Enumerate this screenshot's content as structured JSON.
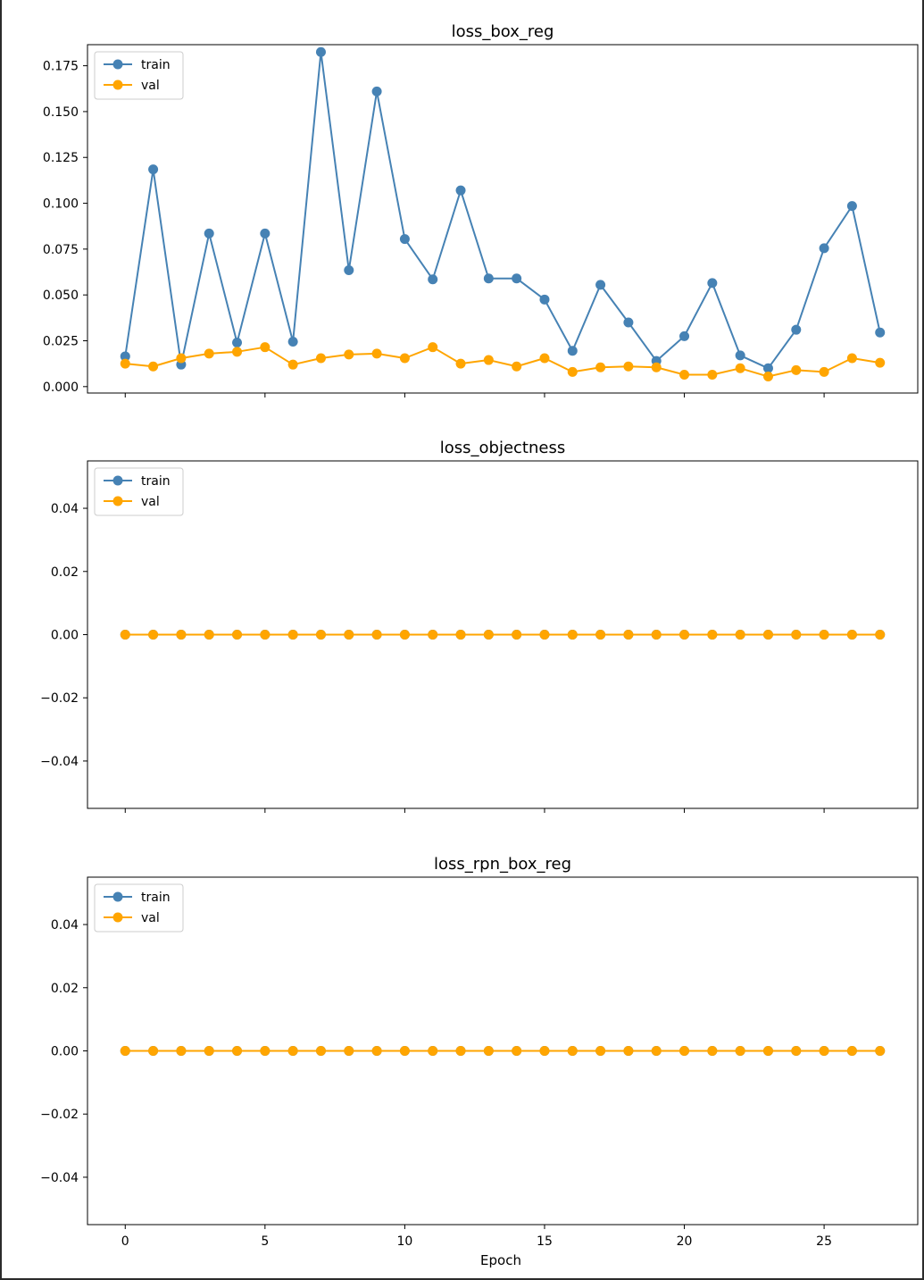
{
  "figure": {
    "xlabel": "Epoch"
  },
  "colors": {
    "train": "#4682b4",
    "val": "#ffa500",
    "axis": "#000000"
  },
  "chart_data": [
    {
      "type": "line",
      "title": "loss_box_reg",
      "xlabel": "",
      "ylabel": "",
      "x": [
        0,
        1,
        2,
        3,
        4,
        5,
        6,
        7,
        8,
        9,
        10,
        11,
        12,
        13,
        14,
        15,
        16,
        17,
        18,
        19,
        20,
        21,
        22,
        23,
        24,
        25,
        26,
        27
      ],
      "xlim": [
        -1.35,
        28.35
      ],
      "ylim": [
        -0.0035,
        0.1865
      ],
      "xticks": [
        0,
        5,
        10,
        15,
        20,
        25
      ],
      "xtick_labels": [
        "0",
        "5",
        "10",
        "15",
        "20",
        "25"
      ],
      "yticks": [
        0.0,
        0.025,
        0.05,
        0.075,
        0.1,
        0.125,
        0.15,
        0.175
      ],
      "ytick_labels": [
        "0.000",
        "0.025",
        "0.050",
        "0.075",
        "0.100",
        "0.125",
        "0.150",
        "0.175"
      ],
      "show_xtick_labels": false,
      "legend": "upper-left",
      "series": [
        {
          "name": "train",
          "color": "#4682b4",
          "values": [
            0.0165,
            0.1185,
            0.012,
            0.0835,
            0.024,
            0.0835,
            0.0245,
            0.1825,
            0.0635,
            0.161,
            0.0805,
            0.0585,
            0.107,
            0.059,
            0.059,
            0.0475,
            0.0195,
            0.0555,
            0.035,
            0.014,
            0.0275,
            0.0565,
            0.017,
            0.01,
            0.031,
            0.0755,
            0.0985,
            0.0295
          ]
        },
        {
          "name": "val",
          "color": "#ffa500",
          "values": [
            0.0125,
            0.011,
            0.0155,
            0.018,
            0.019,
            0.0215,
            0.012,
            0.0155,
            0.0175,
            0.018,
            0.0155,
            0.0215,
            0.0125,
            0.0145,
            0.011,
            0.0155,
            0.008,
            0.0105,
            0.011,
            0.0105,
            0.0065,
            0.0065,
            0.01,
            0.0055,
            0.009,
            0.008,
            0.0155,
            0.013
          ]
        }
      ]
    },
    {
      "type": "line",
      "title": "loss_objectness",
      "xlabel": "",
      "ylabel": "",
      "x": [
        0,
        1,
        2,
        3,
        4,
        5,
        6,
        7,
        8,
        9,
        10,
        11,
        12,
        13,
        14,
        15,
        16,
        17,
        18,
        19,
        20,
        21,
        22,
        23,
        24,
        25,
        26,
        27
      ],
      "xlim": [
        -1.35,
        28.35
      ],
      "ylim": [
        -0.055,
        0.055
      ],
      "xticks": [
        0,
        5,
        10,
        15,
        20,
        25
      ],
      "xtick_labels": [
        "0",
        "5",
        "10",
        "15",
        "20",
        "25"
      ],
      "yticks": [
        -0.04,
        -0.02,
        0.0,
        0.02,
        0.04
      ],
      "ytick_labels": [
        "−0.04",
        "−0.02",
        "0.00",
        "0.02",
        "0.04"
      ],
      "show_xtick_labels": false,
      "legend": "upper-left",
      "series": [
        {
          "name": "train",
          "color": "#4682b4",
          "values": [
            0,
            0,
            0,
            0,
            0,
            0,
            0,
            0,
            0,
            0,
            0,
            0,
            0,
            0,
            0,
            0,
            0,
            0,
            0,
            0,
            0,
            0,
            0,
            0,
            0,
            0,
            0,
            0
          ]
        },
        {
          "name": "val",
          "color": "#ffa500",
          "values": [
            0,
            0,
            0,
            0,
            0,
            0,
            0,
            0,
            0,
            0,
            0,
            0,
            0,
            0,
            0,
            0,
            0,
            0,
            0,
            0,
            0,
            0,
            0,
            0,
            0,
            0,
            0,
            0
          ]
        }
      ]
    },
    {
      "type": "line",
      "title": "loss_rpn_box_reg",
      "xlabel": "Epoch",
      "ylabel": "",
      "x": [
        0,
        1,
        2,
        3,
        4,
        5,
        6,
        7,
        8,
        9,
        10,
        11,
        12,
        13,
        14,
        15,
        16,
        17,
        18,
        19,
        20,
        21,
        22,
        23,
        24,
        25,
        26,
        27
      ],
      "xlim": [
        -1.35,
        28.35
      ],
      "ylim": [
        -0.055,
        0.055
      ],
      "xticks": [
        0,
        5,
        10,
        15,
        20,
        25
      ],
      "xtick_labels": [
        "0",
        "5",
        "10",
        "15",
        "20",
        "25"
      ],
      "yticks": [
        -0.04,
        -0.02,
        0.0,
        0.02,
        0.04
      ],
      "ytick_labels": [
        "−0.04",
        "−0.02",
        "0.00",
        "0.02",
        "0.04"
      ],
      "show_xtick_labels": true,
      "legend": "upper-left",
      "series": [
        {
          "name": "train",
          "color": "#4682b4",
          "values": [
            0,
            0,
            0,
            0,
            0,
            0,
            0,
            0,
            0,
            0,
            0,
            0,
            0,
            0,
            0,
            0,
            0,
            0,
            0,
            0,
            0,
            0,
            0,
            0,
            0,
            0,
            0,
            0
          ]
        },
        {
          "name": "val",
          "color": "#ffa500",
          "values": [
            0,
            0,
            0,
            0,
            0,
            0,
            0,
            0,
            0,
            0,
            0,
            0,
            0,
            0,
            0,
            0,
            0,
            0,
            0,
            0,
            0,
            0,
            0,
            0,
            0,
            0,
            0,
            0
          ]
        }
      ]
    }
  ]
}
